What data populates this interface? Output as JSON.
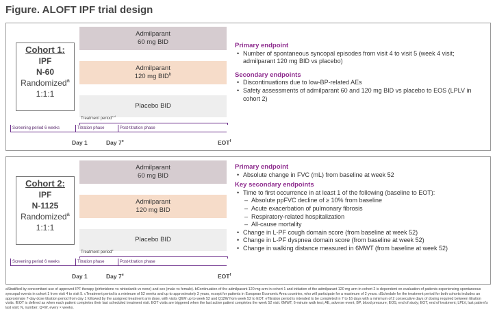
{
  "title": "Figure. ALOFT IPF trial design",
  "cohorts": [
    {
      "name": "Cohort 1:",
      "disease": "IPF",
      "n": "N-60",
      "randomized": "Randomized",
      "randomized_sup": "a",
      "ratio": "1:1:1",
      "arms": [
        {
          "drug": "Admilparant",
          "dose": "60 mg BID"
        },
        {
          "drug": "Admilparant",
          "dose": "120 mg BID",
          "sup": "b"
        },
        {
          "label": "Placebo BID"
        }
      ],
      "treatment_period": "Treatment period",
      "treatment_period_sup": "c,d",
      "phases": [
        "Screening period 6 weeks",
        "Titration phase",
        "Post-titration phase"
      ],
      "day1": "Day 1",
      "day7": "Day 7",
      "day7_sup": "e",
      "eot": "EOT",
      "eot_sup": "f",
      "primary_heading": "Primary endpoint",
      "primary": [
        {
          "text": "Number of spontaneous syncopal episodes from visit 4 to visit 5 (week 4 visit; admilparant 120 mg BID vs placebo)"
        }
      ],
      "secondary_heading": "Secondary endpoints",
      "secondary": [
        {
          "text": "Discontinuations due to low-BP-related AEs"
        },
        {
          "text": "Safety assessments of admilparant 60 and 120 mg BID vs placebo to EOS (LPLV in cohort 2)"
        }
      ]
    },
    {
      "name": "Cohort 2:",
      "disease": "IPF",
      "n": "N-1125",
      "randomized": "Randomized",
      "randomized_sup": "a",
      "ratio": "1:1:1",
      "arms": [
        {
          "drug": "Admilparant",
          "dose": "60 mg BID"
        },
        {
          "drug": "Admilparant",
          "dose": "120 mg BID"
        },
        {
          "label": "Placebo BID"
        }
      ],
      "treatment_period": "Treatment period",
      "treatment_period_sup": "c",
      "phases": [
        "Screening period 6 weeks",
        "Titration phase",
        "Post-titration phase"
      ],
      "day1": "Day 1",
      "day7": "Day 7",
      "day7_sup": "e",
      "eot": "EOT",
      "eot_sup": "f",
      "primary_heading": "Primary endpoint",
      "primary": [
        {
          "text": "Absolute change in FVC (mL) from baseline at week 52"
        }
      ],
      "secondary_heading": "Key secondary endpoints",
      "secondary": [
        {
          "text": "Time to first occurrence in at least 1 of the following (baseline to EOT):",
          "sub": [
            "Absolute ppFVC decline of ≥ 10% from baseline",
            "Acute exacerbation of pulmonary fibrosis",
            "Respiratory-related hospitalization",
            "All-cause mortality"
          ]
        },
        {
          "text": "Change in L-PF cough domain score (from baseline at week 52)"
        },
        {
          "text": "Change in L-PF dyspnea domain score (from baseline at week 52)"
        },
        {
          "text": "Change in walking distance measured in 6MWT (from baseline at week 52)"
        }
      ]
    }
  ],
  "footnote": "aStratified by concomitant use of approved IPF therapy (pirfenidone vs nintedanib vs none) and sex (male vs female). bContinuation of the admilparant 120 mg arm in cohort 1 and initiation of the admilparant 120 mg arm in cohort 2 is dependent on evaluation of patients experiencing spontaneous syncopal events in cohort 1 from visit 4 to visit 5. cTreatment period is a minimum of 52 weeks and up to approximately 3 years, except for patients in European Economic Area countries, who will participate for a maximum of 2 years. dSchedule for the treatment period for both cohorts includes an approximate 7-day dose titration period from day 1 followed by the assigned treatment arm dose, with visits Q6W up to week 52 and Q12W from week 52 to EOT. eTitration period is intended to be completed in 7 to 16 days with a minimum of 2 consecutive days of dosing required between titration visits. fEOT is defined as when each patient completes their last scheduled treatment visit. EOT visits are triggered when the last active patient completes the week 52 visit. 6MWT, 6-minute walk test; AE, adverse event; BP, blood pressure; EOS, end of study; EOT, end of treatment; LPLV, last patient's last visit; N, number; Q×W, every × weeks."
}
